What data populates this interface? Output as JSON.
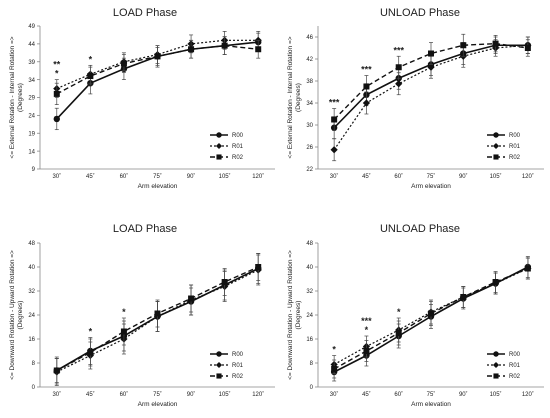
{
  "chart_data": [
    {
      "type": "line",
      "title": "LOAD Phase",
      "xlabel": "Arm elevation",
      "ylabel": [
        "<= External Rotation - Internal Rotation =>",
        "(Degrees)"
      ],
      "categories": [
        "30˚",
        "45˚",
        "60˚",
        "75˚",
        "90˚",
        "105˚",
        "120˚"
      ],
      "ylim": [
        9,
        49
      ],
      "yticks": [
        9,
        14,
        19,
        24,
        29,
        34,
        39,
        44,
        49
      ],
      "grid": false,
      "legend": "bottom-right",
      "annotations": [
        {
          "index": 0,
          "text": "*"
        },
        {
          "index": 0,
          "text": "**"
        },
        {
          "index": 1,
          "text": "*"
        }
      ],
      "series": [
        {
          "name": "R00",
          "values": [
            23,
            33,
            37,
            40.5,
            42.5,
            43.5,
            44.5
          ],
          "errors": [
            3,
            3,
            3,
            3,
            2.5,
            2.5,
            2.5
          ]
        },
        {
          "name": "R01",
          "values": [
            31.5,
            35.5,
            39,
            41,
            44,
            45,
            45
          ],
          "errors": [
            2.5,
            2.5,
            2.5,
            2.5,
            2.5,
            2.5,
            2.5
          ]
        },
        {
          "name": "R02",
          "values": [
            30,
            35,
            38.5,
            40.5,
            42.5,
            43.5,
            42.5
          ],
          "errors": [
            3,
            2.5,
            2.5,
            2.5,
            2.5,
            2.5,
            2.5
          ]
        }
      ]
    },
    {
      "type": "line",
      "title": "UNLOAD Phase",
      "xlabel": "Arm elevation",
      "ylabel": [
        "<= External Rotation - Internal Rotation =>",
        "(Degrees)"
      ],
      "categories": [
        "30˚",
        "45˚",
        "60˚",
        "75˚",
        "90˚",
        "105˚",
        "120˚"
      ],
      "ylim": [
        22,
        48
      ],
      "yticks": [
        22,
        26,
        30,
        34,
        38,
        42,
        46
      ],
      "grid": false,
      "legend": "bottom-right",
      "annotations": [
        {
          "index": 0,
          "text": "***"
        },
        {
          "index": 1,
          "text": "***"
        },
        {
          "index": 2,
          "text": "***"
        }
      ],
      "series": [
        {
          "name": "R00",
          "values": [
            29.5,
            35.5,
            38.5,
            41,
            43,
            44.5,
            44.5
          ],
          "errors": [
            2,
            2,
            2,
            2,
            2,
            1.5,
            1.5
          ]
        },
        {
          "name": "R01",
          "values": [
            25.5,
            34,
            37.5,
            40.5,
            42.5,
            44,
            44.5
          ],
          "errors": [
            2,
            2,
            2,
            2,
            2,
            1.5,
            1.5
          ]
        },
        {
          "name": "R02",
          "values": [
            31,
            37,
            40.5,
            43,
            44.5,
            44.8,
            44
          ],
          "errors": [
            2,
            2,
            2,
            2,
            2,
            1.5,
            1.5
          ]
        }
      ]
    },
    {
      "type": "line",
      "title": "LOAD Phase",
      "xlabel": "Arm elevation",
      "ylabel": [
        "<= Downward Rotation - Upward Rotation =>",
        "(Degrees)"
      ],
      "categories": [
        "30˚",
        "45˚",
        "60˚",
        "75˚",
        "90˚",
        "105˚",
        "120˚"
      ],
      "ylim": [
        0,
        48
      ],
      "yticks": [
        0,
        8,
        16,
        24,
        32,
        40,
        48
      ],
      "grid": false,
      "legend": "bottom-right",
      "annotations": [
        {
          "index": 1,
          "text": "*"
        },
        {
          "index": 2,
          "text": "*"
        }
      ],
      "series": [
        {
          "name": "R00",
          "values": [
            5.5,
            12,
            17,
            23.5,
            28.5,
            34,
            39.5
          ],
          "errors": [
            4.5,
            4.5,
            5,
            5,
            4.5,
            5,
            5
          ]
        },
        {
          "name": "R01",
          "values": [
            5,
            10.5,
            16,
            23.5,
            29,
            33.5,
            39
          ],
          "errors": [
            4.5,
            4.5,
            5,
            5,
            5,
            5,
            5
          ]
        },
        {
          "name": "R02",
          "values": [
            5.5,
            11.5,
            18.5,
            24.5,
            29.5,
            35,
            40
          ],
          "errors": [
            4,
            4.5,
            4.5,
            4.5,
            4.5,
            4.5,
            4.5
          ]
        }
      ]
    },
    {
      "type": "line",
      "title": "UNLOAD Phase",
      "xlabel": "Arm elevation",
      "ylabel": [
        "<= Downward Rotation - Upward Rotation =>",
        "(Degrees)"
      ],
      "categories": [
        "30˚",
        "45˚",
        "60˚",
        "75˚",
        "90˚",
        "105˚",
        "120˚"
      ],
      "ylim": [
        0,
        48
      ],
      "yticks": [
        0,
        8,
        16,
        24,
        32,
        40,
        48
      ],
      "grid": false,
      "legend": "bottom-right",
      "annotations": [
        {
          "index": 0,
          "text": "*"
        },
        {
          "index": 1,
          "text": "*"
        },
        {
          "index": 1,
          "text": "***"
        },
        {
          "index": 2,
          "text": "*"
        }
      ],
      "series": [
        {
          "name": "R00",
          "values": [
            5,
            10.5,
            17,
            23.5,
            29.5,
            34.5,
            40
          ],
          "errors": [
            3,
            3.5,
            4,
            4,
            3.5,
            3.5,
            3.5
          ]
        },
        {
          "name": "R01",
          "values": [
            7.5,
            13.5,
            19,
            25,
            30,
            34.5,
            39.5
          ],
          "errors": [
            3,
            3.5,
            4,
            4,
            3.5,
            3.5,
            3.5
          ]
        },
        {
          "name": "R02",
          "values": [
            6,
            12,
            18,
            24.5,
            30,
            35,
            39.5
          ],
          "errors": [
            3,
            3.5,
            4,
            4,
            3.5,
            3.5,
            3.5
          ]
        }
      ]
    }
  ]
}
